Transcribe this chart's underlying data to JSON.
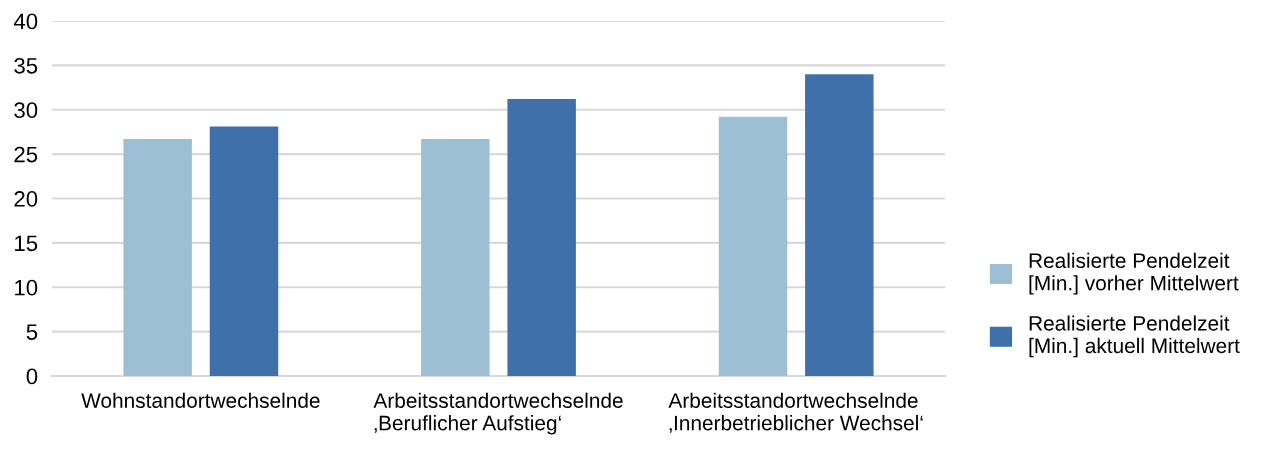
{
  "chart_data": {
    "type": "bar",
    "categories": [
      "Wohnstandortwechselnde",
      "Arbeitsstandortwechselnde\n‚Beruflicher Aufstieg‘",
      "Arbeitsstandortwechselnde\n‚Innerbetrieblicher Wechsel‘"
    ],
    "series": [
      {
        "name": "Realisierte Pendelzeit\n[Min.] vorher Mittelwert",
        "color": "#9dbfd6",
        "values": [
          26.7,
          26.7,
          29.2
        ]
      },
      {
        "name": "Realisierte Pendelzeit\n[Min.] aktuell Mittelwert",
        "color": "#3f70aa",
        "values": [
          28.1,
          31.2,
          34.0
        ]
      }
    ],
    "ylim": [
      0,
      40
    ],
    "yticks": [
      0,
      5,
      10,
      15,
      20,
      25,
      30,
      35,
      40
    ],
    "grid": "y",
    "legend": "right"
  }
}
